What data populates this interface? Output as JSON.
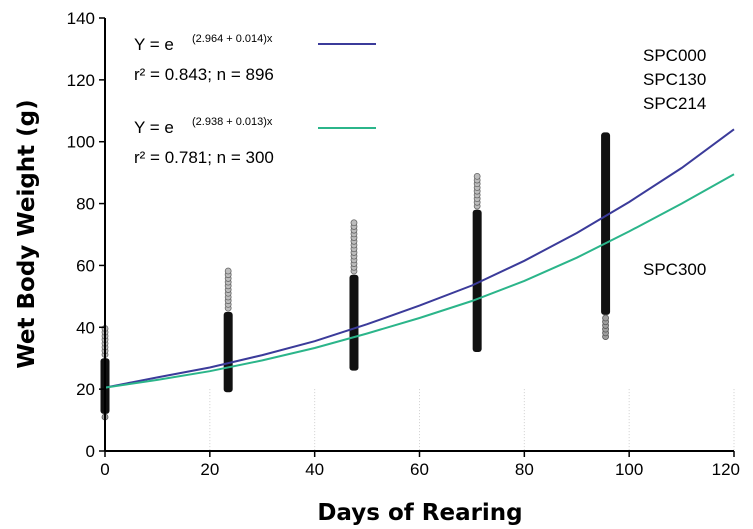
{
  "chart_data": {
    "type": "scatter",
    "xlabel": "Days of Rearing",
    "ylabel": "Wet Body Weight (g)",
    "xlim": [
      0,
      120
    ],
    "ylim": [
      0,
      140
    ],
    "x_ticks": [
      "0",
      "20",
      "40",
      "60",
      "80",
      "100",
      "120"
    ],
    "y_ticks": [
      "0",
      "20",
      "40",
      "60",
      "80",
      "100",
      "120",
      "140"
    ],
    "scatter_columns": [
      {
        "x": 0,
        "y_min": 11,
        "y_max": 40,
        "solid_min": 12,
        "solid_max": 30
      },
      {
        "x": 23.5,
        "y_min": 19,
        "y_max": 59,
        "solid_min": 19,
        "solid_max": 45
      },
      {
        "x": 47.5,
        "y_min": 26,
        "y_max": 74,
        "solid_min": 26,
        "solid_max": 57
      },
      {
        "x": 71,
        "y_min": 32,
        "y_max": 89,
        "solid_min": 32,
        "solid_max": 78
      },
      {
        "x": 95.5,
        "y_min": 37,
        "y_max": 104,
        "solid_min": 44,
        "solid_max": 103
      }
    ],
    "series": [
      {
        "color": "#3b3b9a",
        "equation": {
          "prefix": "Y = e",
          "exponent": "(2.964 + 0.014)x"
        },
        "stats": "r² = 0.843; n = 896",
        "labels": [
          "SPC000",
          "SPC130",
          "SPC214"
        ],
        "x": [
          0,
          10,
          20,
          30,
          40,
          50,
          60,
          70,
          80,
          90,
          100,
          110,
          120
        ],
        "y": [
          20.5,
          23.8,
          27.0,
          31.0,
          35.5,
          41.0,
          47.0,
          53.5,
          61.5,
          70.5,
          80.5,
          91.5,
          104.0
        ]
      },
      {
        "color": "#2bb58a",
        "equation": {
          "prefix": "Y = e",
          "exponent": "(2.938 + 0.013)x"
        },
        "stats": "r² = 0.781; n = 300",
        "labels": [
          "SPC300"
        ],
        "x": [
          0,
          10,
          20,
          30,
          40,
          50,
          60,
          70,
          80,
          90,
          100,
          110,
          120
        ],
        "y": [
          20.5,
          23.0,
          25.8,
          29.3,
          33.3,
          38.0,
          43.0,
          48.5,
          55.0,
          62.5,
          71.0,
          80.0,
          89.5
        ]
      }
    ]
  }
}
